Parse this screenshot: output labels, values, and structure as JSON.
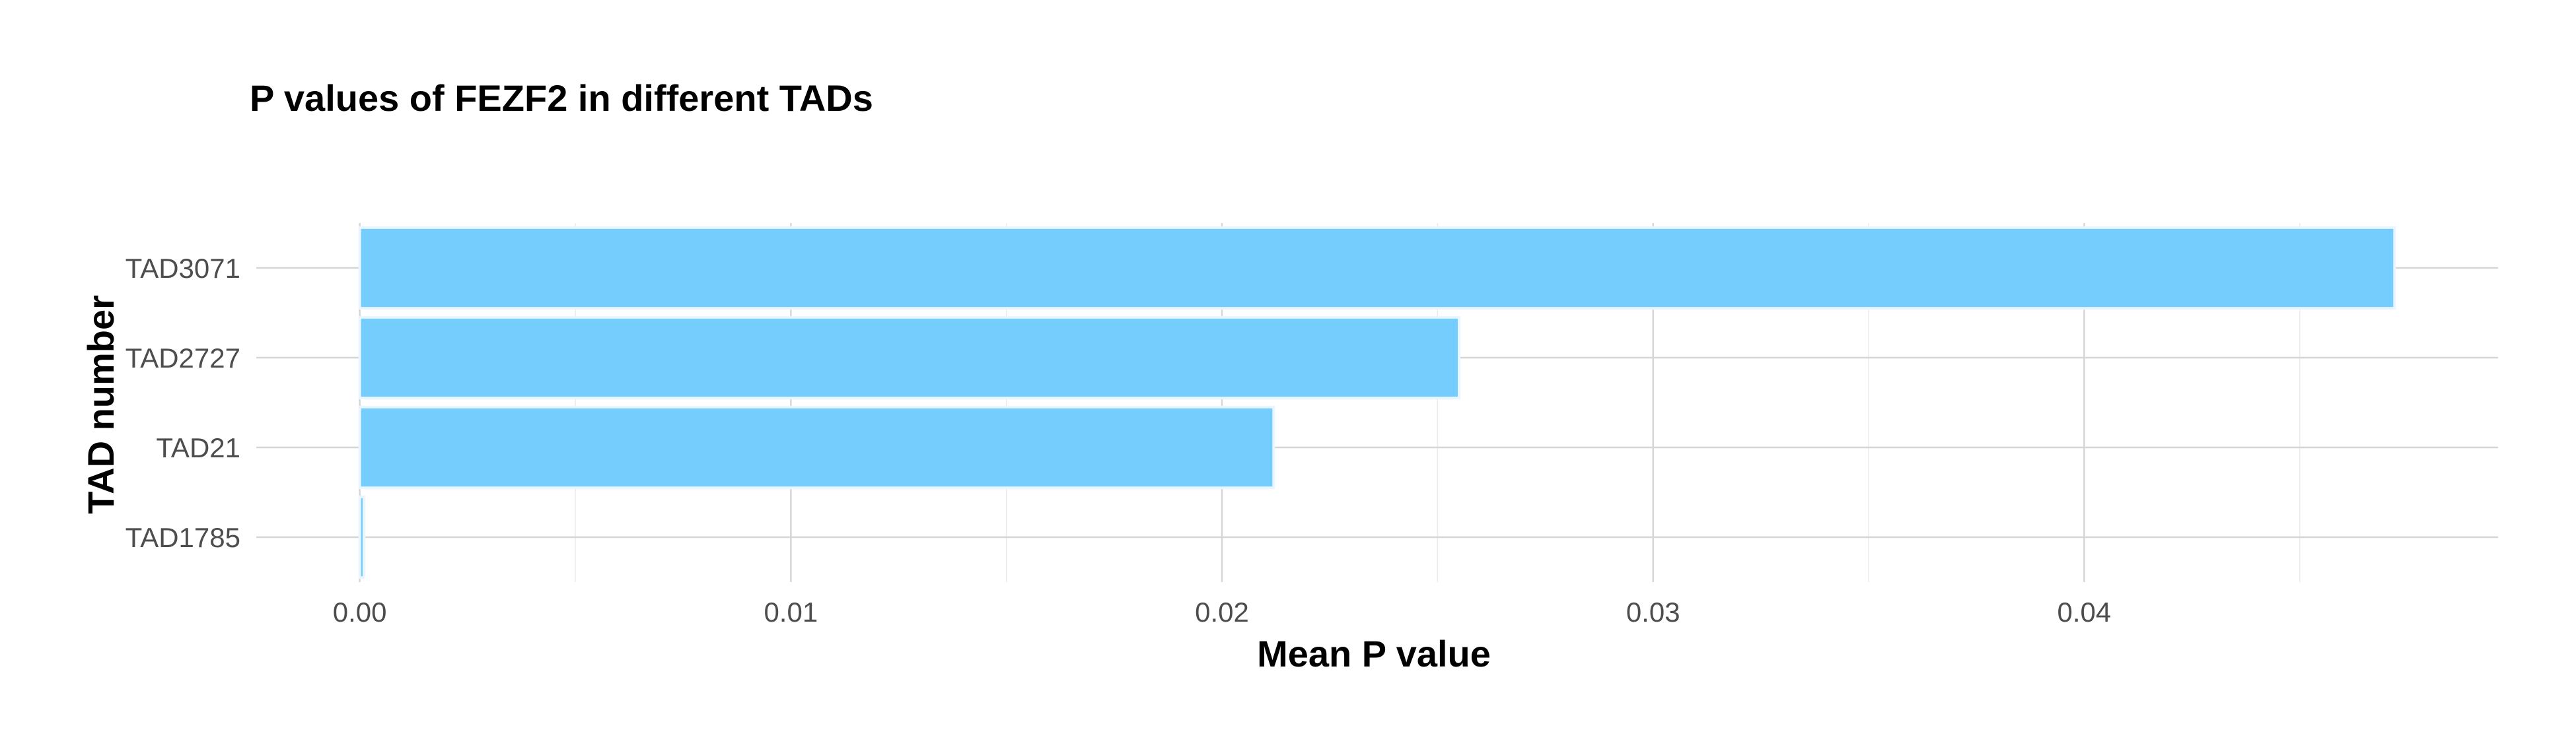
{
  "chart_data": {
    "type": "bar",
    "orientation": "horizontal",
    "title": "P values of FEZF2 in different TADs",
    "xlabel": "Mean P value",
    "ylabel": "TAD number",
    "categories": [
      "TAD3071",
      "TAD2727",
      "TAD21",
      "TAD1785"
    ],
    "values": [
      0.0472,
      0.0255,
      0.0212,
      0.0001
    ],
    "xlim": [
      -0.0024,
      0.0496
    ],
    "xticks": [
      0.0,
      0.01,
      0.02,
      0.03,
      0.04
    ],
    "xtick_labels": [
      "0.00",
      "0.01",
      "0.02",
      "0.03",
      "0.04"
    ],
    "grid": true,
    "legend": "none",
    "colors": {
      "bar": "#74cdfc"
    }
  }
}
